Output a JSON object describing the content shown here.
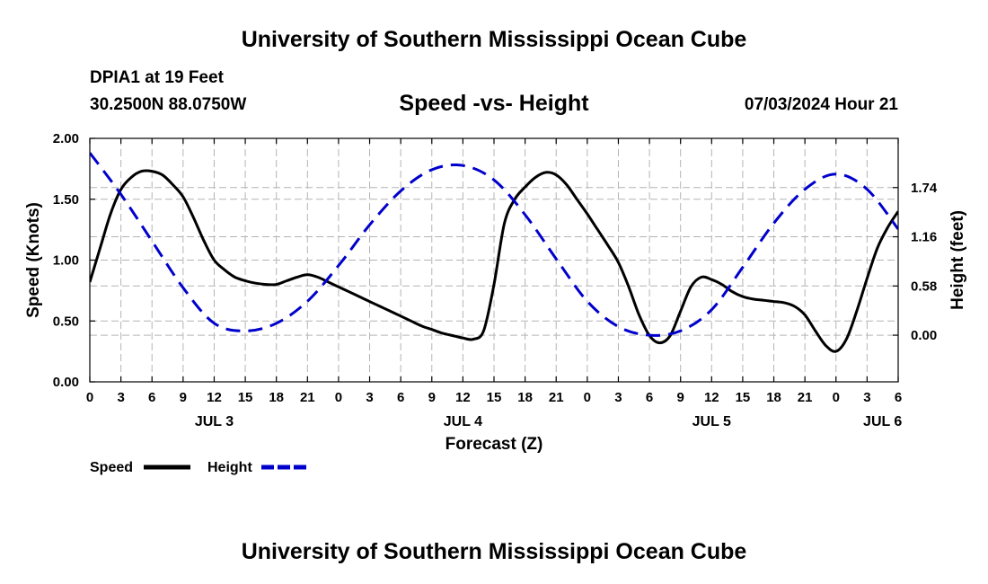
{
  "header": {
    "title": "University of Southern Mississippi Ocean Cube",
    "station": "DPIA1 at 19 Feet",
    "coords": "30.2500N  88.0750W",
    "timestamp": "07/03/2024 Hour 21"
  },
  "footer": {
    "title": "University of Southern Mississippi Ocean Cube"
  },
  "chart_data": {
    "type": "line",
    "title": "Speed -vs- Height",
    "xlabel": "Forecast (Z)",
    "ylabel_left": "Speed (Knots)",
    "ylabel_right": "Height (feet)",
    "x_unit": "hours since JUL 3 00Z",
    "xlim": [
      0,
      78
    ],
    "ylim_left": [
      0,
      2
    ],
    "ylim_right": [
      -0.55,
      2.32
    ],
    "grid": true,
    "x_ticks": [
      0,
      3,
      6,
      9,
      12,
      15,
      18,
      21,
      24,
      27,
      30,
      33,
      36,
      39,
      42,
      45,
      48,
      51,
      54,
      57,
      60,
      63,
      66,
      69,
      72,
      75,
      78
    ],
    "x_tick_labels": [
      "0",
      "3",
      "6",
      "9",
      "12",
      "15",
      "18",
      "21",
      "0",
      "3",
      "6",
      "9",
      "12",
      "15",
      "18",
      "21",
      "0",
      "3",
      "6",
      "9",
      "12",
      "15",
      "18",
      "21",
      "0",
      "3",
      "6"
    ],
    "day_labels": [
      {
        "label": "JUL 3",
        "x": 12
      },
      {
        "label": "JUL 4",
        "x": 36
      },
      {
        "label": "JUL 5",
        "x": 60
      },
      {
        "label": "JUL 6",
        "x": 76.5
      }
    ],
    "y_left_ticks": [
      0,
      0.5,
      1,
      1.5,
      2
    ],
    "y_left_tick_labels": [
      "0.00",
      "0.50",
      "1.00",
      "1.50",
      "2.00"
    ],
    "y_right_ticks": [
      0,
      0.58,
      1.16,
      1.74
    ],
    "y_right_tick_labels": [
      "0.00",
      "0.58",
      "1.16",
      "1.74"
    ],
    "legend": [
      {
        "name": "Speed",
        "color": "#000000",
        "dash": "solid"
      },
      {
        "name": "Height",
        "color": "#0000cc",
        "dash": "dashed"
      }
    ],
    "series": [
      {
        "name": "Speed",
        "axis": "left",
        "color": "#000000",
        "x": [
          0,
          1,
          2,
          3,
          4,
          5,
          6,
          7,
          8,
          9,
          10,
          11,
          12,
          13,
          14,
          15,
          16,
          17,
          18,
          19,
          20,
          21,
          22,
          23,
          24,
          25,
          26,
          27,
          28,
          29,
          30,
          31,
          32,
          33,
          34,
          35,
          36,
          37,
          38,
          39,
          40,
          41,
          42,
          43,
          44,
          45,
          46,
          47,
          48,
          49,
          50,
          51,
          52,
          53,
          54,
          55,
          56,
          57,
          58,
          59,
          60,
          61,
          62,
          63,
          64,
          65,
          66,
          67,
          68,
          69,
          70,
          71,
          72,
          73,
          74,
          75,
          76,
          77,
          78
        ],
        "values": [
          0.82,
          1.1,
          1.38,
          1.58,
          1.68,
          1.73,
          1.73,
          1.7,
          1.62,
          1.52,
          1.35,
          1.16,
          1.0,
          0.92,
          0.86,
          0.83,
          0.81,
          0.8,
          0.8,
          0.83,
          0.86,
          0.88,
          0.86,
          0.82,
          0.78,
          0.74,
          0.7,
          0.66,
          0.62,
          0.58,
          0.54,
          0.5,
          0.46,
          0.43,
          0.4,
          0.38,
          0.36,
          0.35,
          0.42,
          0.8,
          1.3,
          1.5,
          1.6,
          1.68,
          1.72,
          1.7,
          1.62,
          1.5,
          1.38,
          1.25,
          1.12,
          0.98,
          0.78,
          0.55,
          0.38,
          0.32,
          0.38,
          0.58,
          0.78,
          0.86,
          0.84,
          0.8,
          0.74,
          0.7,
          0.68,
          0.67,
          0.66,
          0.65,
          0.62,
          0.55,
          0.42,
          0.3,
          0.25,
          0.35,
          0.58,
          0.85,
          1.1,
          1.27,
          1.4
        ]
      },
      {
        "name": "Height",
        "axis": "right",
        "color": "#0000cc",
        "x": [
          0,
          3,
          6,
          9,
          12,
          15,
          18,
          21,
          24,
          27,
          30,
          33,
          36,
          39,
          42,
          45,
          48,
          51,
          54,
          57,
          60,
          63,
          66,
          69,
          72,
          75,
          78
        ],
        "values": [
          2.15,
          1.66,
          1.11,
          0.56,
          0.14,
          0.05,
          0.14,
          0.4,
          0.82,
          1.3,
          1.7,
          1.95,
          2.0,
          1.83,
          1.42,
          0.9,
          0.4,
          0.1,
          0.0,
          0.05,
          0.3,
          0.8,
          1.32,
          1.72,
          1.9,
          1.72,
          1.25
        ]
      }
    ]
  }
}
